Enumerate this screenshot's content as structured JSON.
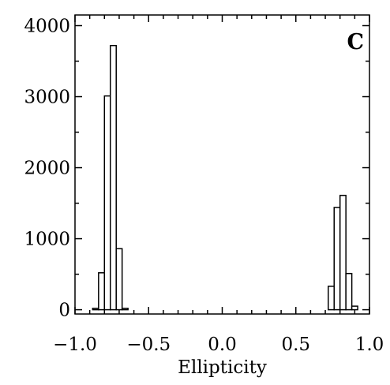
{
  "chart_data": {
    "type": "bar",
    "panel_label": "C",
    "xlabel": "Ellipticity",
    "ylabel": "",
    "xlim": [
      -1.0,
      1.0
    ],
    "ylim": [
      -60,
      4150
    ],
    "grid": false,
    "bin_width": 0.04,
    "x_ticks": [
      {
        "value": -1.0,
        "label": "−1.0"
      },
      {
        "value": -0.5,
        "label": "−0.5"
      },
      {
        "value": 0.0,
        "label": "0.0"
      },
      {
        "value": 0.5,
        "label": "0.5"
      },
      {
        "value": 1.0,
        "label": "1.0"
      }
    ],
    "y_ticks": [
      {
        "value": 0,
        "label": "0"
      },
      {
        "value": 1000,
        "label": "1000"
      },
      {
        "value": 2000,
        "label": "2000"
      },
      {
        "value": 3000,
        "label": "3000"
      },
      {
        "value": 4000,
        "label": "4000"
      }
    ],
    "x_minor_step": 0.1,
    "y_minor_step": 500,
    "bins": [
      {
        "x": -0.92,
        "value": 0
      },
      {
        "x": -0.88,
        "value": 20
      },
      {
        "x": -0.84,
        "value": 520
      },
      {
        "x": -0.8,
        "value": 3010
      },
      {
        "x": -0.76,
        "value": 3720
      },
      {
        "x": -0.72,
        "value": 860
      },
      {
        "x": -0.68,
        "value": 20
      },
      {
        "x": 0.68,
        "value": 0
      },
      {
        "x": 0.72,
        "value": 330
      },
      {
        "x": 0.76,
        "value": 1440
      },
      {
        "x": 0.8,
        "value": 1610
      },
      {
        "x": 0.84,
        "value": 510
      },
      {
        "x": 0.88,
        "value": 50
      },
      {
        "x": 0.92,
        "value": 0
      }
    ],
    "colors": {
      "bar_fill": "#ffffff",
      "bar_stroke": "#000000",
      "axis": "#000000"
    }
  }
}
